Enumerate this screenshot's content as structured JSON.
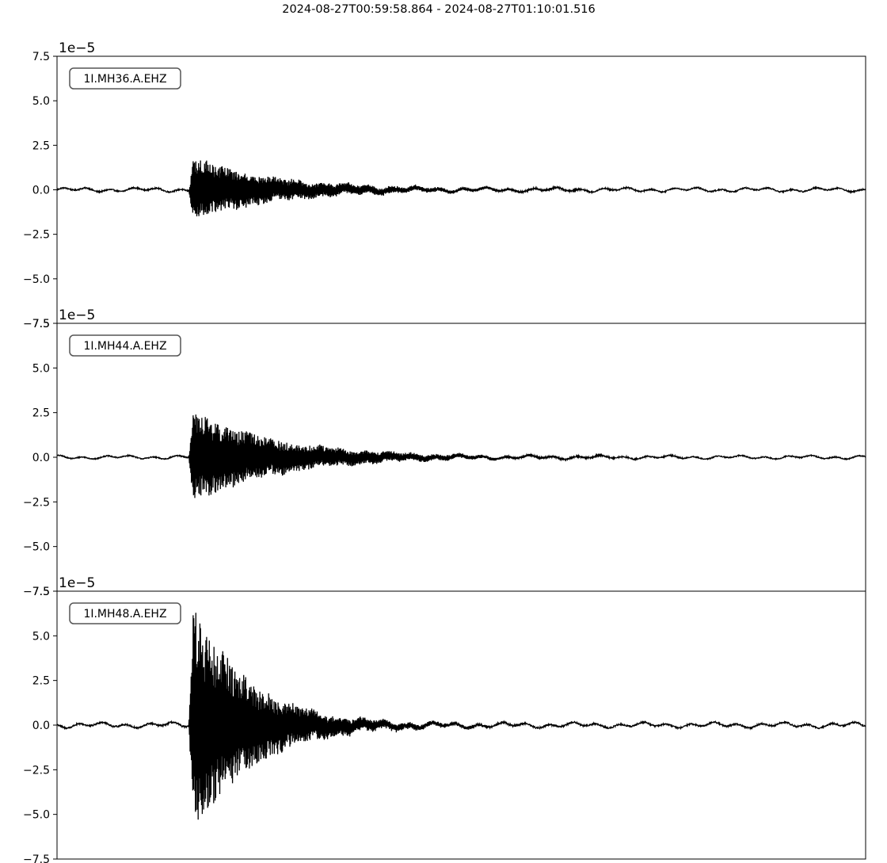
{
  "chart_data": {
    "type": "line",
    "title": "2024-08-27T00:59:58.864  -  2024-08-27T01:10:01.516",
    "xlabel": "",
    "ylabel": "",
    "ylim": [
      -7.5,
      7.5
    ],
    "y_offset_text": "1e−5",
    "y_ticks": [
      "−7.5",
      "−5.0",
      "−2.5",
      "0.0",
      "2.5",
      "5.0",
      "7.5"
    ],
    "time_range": [
      "2024-08-27T00:59:58.864",
      "2024-08-27T01:10:01.516"
    ],
    "grid": false,
    "series": [
      {
        "name": "1I.MH36.A.EHZ",
        "onset_fraction": 0.163,
        "peak_amplitude": 1.9,
        "min_amplitude": -1.8,
        "noise_amplitude": 0.12
      },
      {
        "name": "1I.MH44.A.EHZ",
        "onset_fraction": 0.163,
        "peak_amplitude": 2.7,
        "min_amplitude": -2.7,
        "noise_amplitude": 0.1
      },
      {
        "name": "1I.MH48.A.EHZ",
        "onset_fraction": 0.163,
        "peak_amplitude": 7.5,
        "min_amplitude": -6.5,
        "noise_amplitude": 0.15
      }
    ]
  }
}
